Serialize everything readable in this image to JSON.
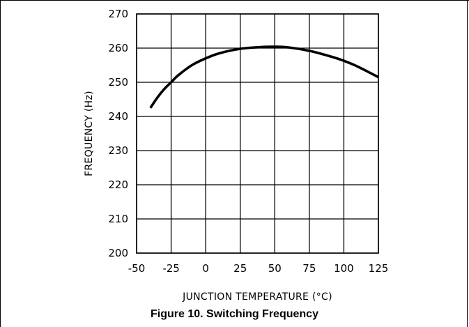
{
  "caption": "Figure 10. Switching Frequency",
  "chart_data": {
    "type": "line",
    "title": "",
    "xlabel": "JUNCTION TEMPERATURE (°C)",
    "ylabel": "FREQUENCY (Hz)",
    "xlim": [
      -50,
      125
    ],
    "ylim": [
      200,
      270
    ],
    "xticks": [
      -50,
      -25,
      0,
      25,
      50,
      75,
      100,
      125
    ],
    "yticks": [
      200,
      210,
      220,
      230,
      240,
      250,
      260,
      270
    ],
    "xtick_labels": [
      "-50",
      "-25",
      "0",
      "25",
      "50",
      "75",
      "100",
      "125"
    ],
    "ytick_labels": [
      "200",
      "210",
      "220",
      "230",
      "240",
      "250",
      "260",
      "270"
    ],
    "grid": true,
    "series": [
      {
        "x": [
          -40,
          -35,
          -30,
          -25,
          -20,
          -10,
          0,
          10,
          25,
          40,
          50,
          60,
          75,
          90,
          100,
          110,
          125
        ],
        "y": [
          242.5,
          245.5,
          248.0,
          250.0,
          252.0,
          255.0,
          257.0,
          258.5,
          259.8,
          260.3,
          260.4,
          260.2,
          259.2,
          257.6,
          256.3,
          254.6,
          251.5
        ]
      }
    ],
    "line_color": "#000000"
  }
}
